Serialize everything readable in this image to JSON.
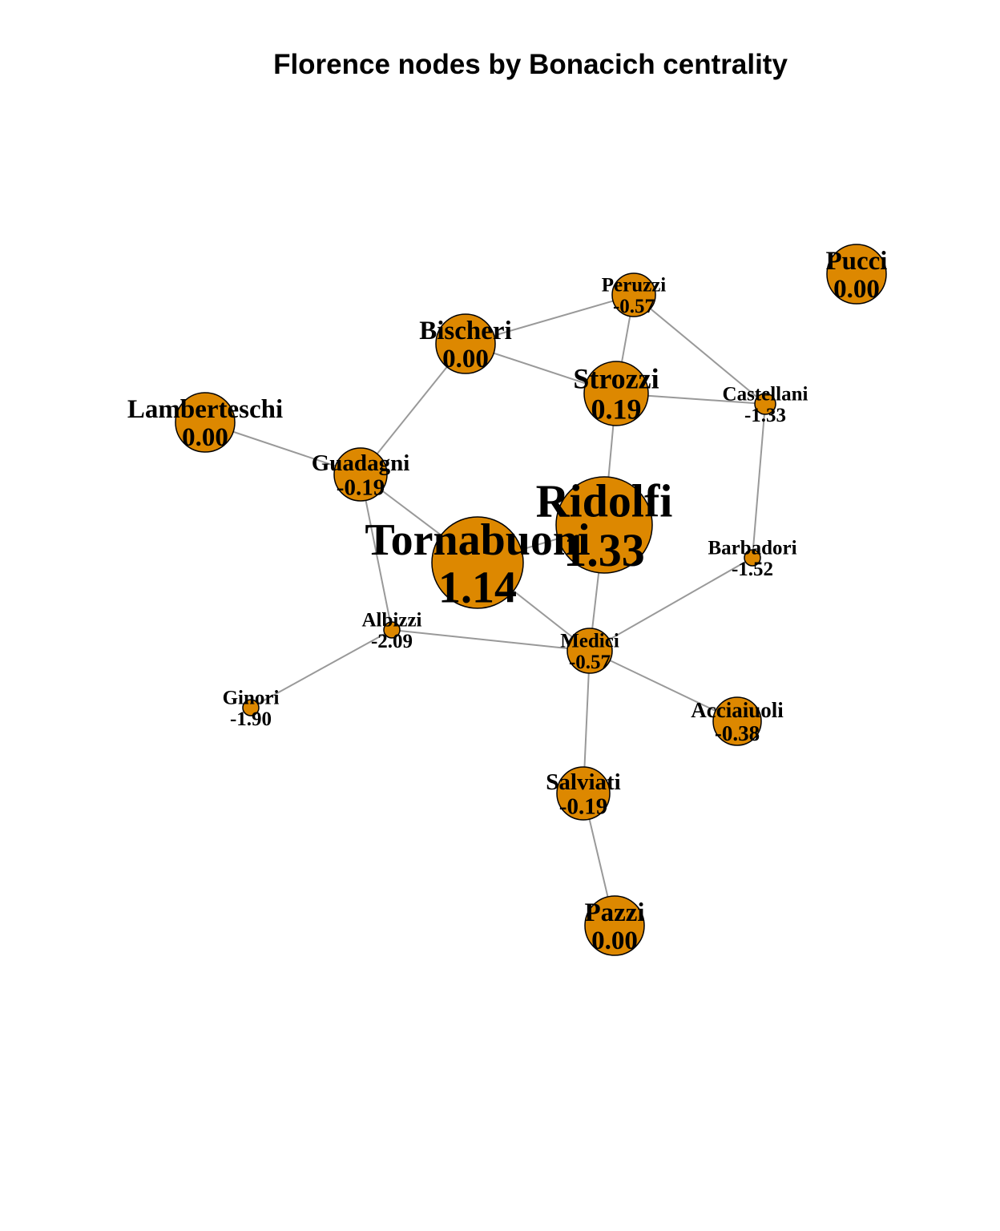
{
  "title": "Florence nodes by Bonacich centrality",
  "node_color": "#DD8800",
  "edge_color": "#999999",
  "nodes": [
    {
      "id": "Acciaiuoli",
      "label": "Acciaiuoli",
      "value": "-0.38"
    },
    {
      "id": "Albizzi",
      "label": "Albizzi",
      "value": "-2.09"
    },
    {
      "id": "Barbadori",
      "label": "Barbadori",
      "value": "-1.52"
    },
    {
      "id": "Bischeri",
      "label": "Bischeri",
      "value": "0.00"
    },
    {
      "id": "Castellani",
      "label": "Castellani",
      "value": "-1.33"
    },
    {
      "id": "Ginori",
      "label": "Ginori",
      "value": "-1.90"
    },
    {
      "id": "Guadagni",
      "label": "Guadagni",
      "value": "-0.19"
    },
    {
      "id": "Lamberteschi",
      "label": "Lamberteschi",
      "value": "0.00"
    },
    {
      "id": "Medici",
      "label": "Medici",
      "value": "-0.57"
    },
    {
      "id": "Pazzi",
      "label": "Pazzi",
      "value": "0.00"
    },
    {
      "id": "Peruzzi",
      "label": "Peruzzi",
      "value": "-0.57"
    },
    {
      "id": "Pucci",
      "label": "Pucci",
      "value": "0.00"
    },
    {
      "id": "Ridolfi",
      "label": "Ridolfi",
      "value": "1.33"
    },
    {
      "id": "Salviati",
      "label": "Salviati",
      "value": "-0.19"
    },
    {
      "id": "Strozzi",
      "label": "Strozzi",
      "value": "0.19"
    },
    {
      "id": "Tornabuoni",
      "label": "Tornabuoni",
      "value": "1.14"
    }
  ],
  "edges": [
    [
      "Acciaiuoli",
      "Medici"
    ],
    [
      "Albizzi",
      "Ginori"
    ],
    [
      "Albizzi",
      "Guadagni"
    ],
    [
      "Albizzi",
      "Medici"
    ],
    [
      "Barbadori",
      "Castellani"
    ],
    [
      "Barbadori",
      "Medici"
    ],
    [
      "Bischeri",
      "Guadagni"
    ],
    [
      "Bischeri",
      "Peruzzi"
    ],
    [
      "Bischeri",
      "Strozzi"
    ],
    [
      "Castellani",
      "Peruzzi"
    ],
    [
      "Castellani",
      "Strozzi"
    ],
    [
      "Guadagni",
      "Lamberteschi"
    ],
    [
      "Guadagni",
      "Tornabuoni"
    ],
    [
      "Medici",
      "Ridolfi"
    ],
    [
      "Medici",
      "Salviati"
    ],
    [
      "Medici",
      "Tornabuoni"
    ],
    [
      "Pazzi",
      "Salviati"
    ],
    [
      "Peruzzi",
      "Strozzi"
    ],
    [
      "Ridolfi",
      "Strozzi"
    ],
    [
      "Ridolfi",
      "Tornabuoni"
    ]
  ]
}
